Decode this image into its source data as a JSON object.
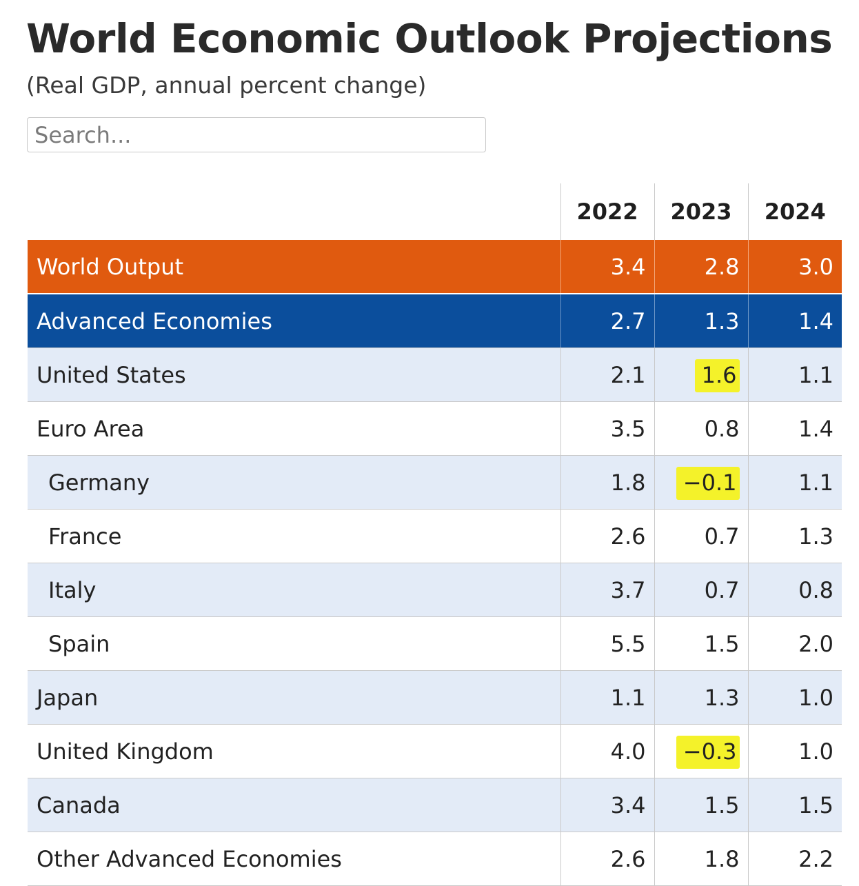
{
  "header": {
    "title": "World Economic Outlook Projections",
    "subtitle": "(Real GDP, annual percent change)"
  },
  "search": {
    "placeholder": "Search..."
  },
  "table": {
    "columns": [
      "",
      "2022",
      "2023",
      "2024"
    ],
    "rows": [
      {
        "name": "World Output",
        "values": [
          "3.4",
          "2.8",
          "3.0"
        ]
      },
      {
        "name": "Advanced Economies",
        "values": [
          "2.7",
          "1.3",
          "1.4"
        ]
      },
      {
        "name": "United States",
        "values": [
          "2.1",
          "1.6",
          "1.1"
        ]
      },
      {
        "name": "Euro Area",
        "values": [
          "3.5",
          "0.8",
          "1.4"
        ]
      },
      {
        "name": "Germany",
        "values": [
          "1.8",
          "−0.1",
          "1.1"
        ]
      },
      {
        "name": "France",
        "values": [
          "2.6",
          "0.7",
          "1.3"
        ]
      },
      {
        "name": "Italy",
        "values": [
          "3.7",
          "0.7",
          "0.8"
        ]
      },
      {
        "name": "Spain",
        "values": [
          "5.5",
          "1.5",
          "2.0"
        ]
      },
      {
        "name": "Japan",
        "values": [
          "1.1",
          "1.3",
          "1.0"
        ]
      },
      {
        "name": "United Kingdom",
        "values": [
          "4.0",
          "−0.3",
          "1.0"
        ]
      },
      {
        "name": "Canada",
        "values": [
          "3.4",
          "1.5",
          "1.5"
        ]
      },
      {
        "name": "Other Advanced Economies",
        "values": [
          "2.6",
          "1.8",
          "2.2"
        ]
      }
    ]
  },
  "colors": {
    "world_output_row": "#e05a0f",
    "advanced_economies_row": "#0b4e9c",
    "shaded_row": "#e3ebf7",
    "highlight": "#f4f22a"
  }
}
